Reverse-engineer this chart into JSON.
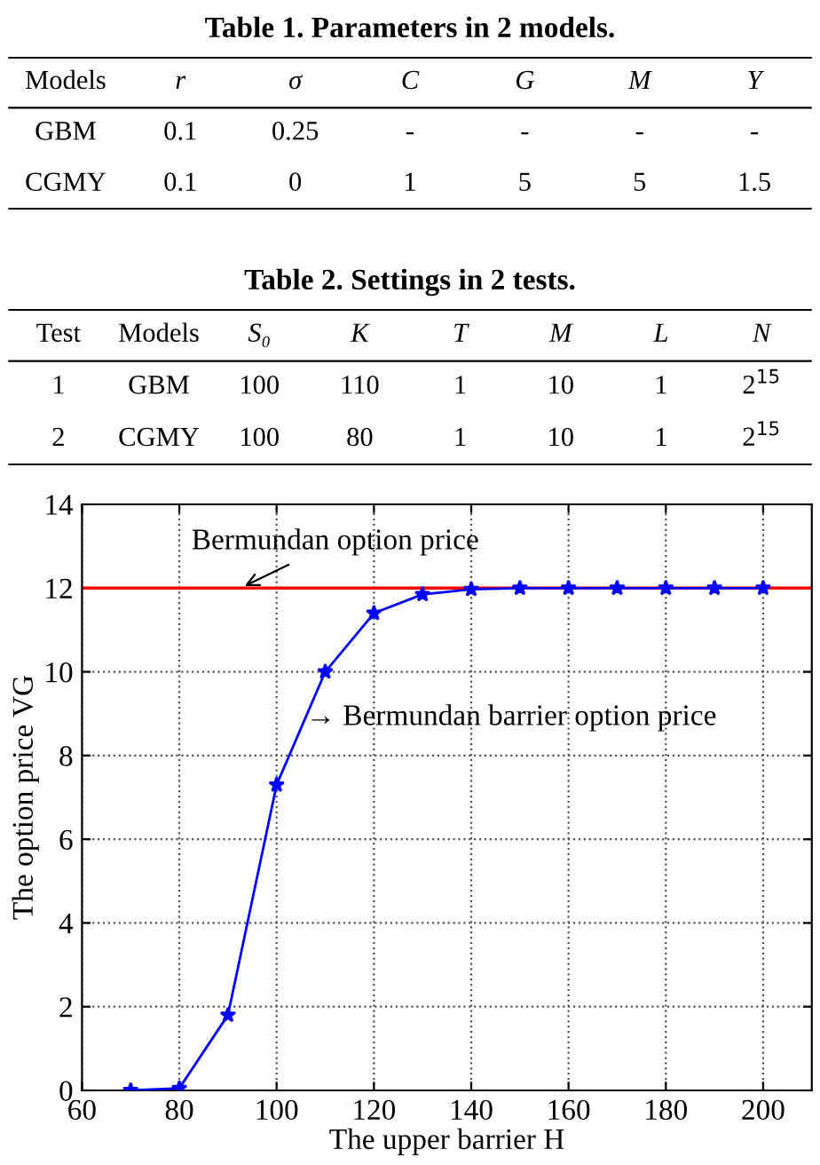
{
  "chart_data": [
    {
      "type": "other",
      "title": "Table 1. Parameters in 2 models.",
      "categories": [
        "Models",
        "r",
        "σ",
        "C",
        "G",
        "M",
        "Y"
      ],
      "annotations": [
        "GBM",
        "0.1",
        "0.25",
        "-",
        "-",
        "-",
        "-",
        "CGMY",
        "0.1",
        "0",
        "1",
        "5",
        "5",
        "1.5"
      ]
    },
    {
      "type": "other",
      "title": "Table 2. Settings in 2 tests.",
      "categories": [
        "Test",
        "Models",
        "S₀",
        "K",
        "T",
        "M",
        "L",
        "N"
      ],
      "annotations": [
        "1",
        "GBM",
        "100",
        "110",
        "1",
        "10",
        "1",
        "2$^{15}$",
        "2",
        "CGMY",
        "100",
        "80",
        "1",
        "10",
        "1",
        "2$^{15}$"
      ]
    },
    {
      "type": "line",
      "xlabel": "The upper barrier H",
      "ylabel": "The option price VG",
      "x": [
        70,
        80,
        90,
        100,
        110,
        120,
        130,
        140,
        150,
        160,
        170,
        180,
        190,
        200
      ],
      "series": [
        {
          "color": "#0000ff",
          "values": [
            0,
            0.05,
            1.8,
            7.3,
            10.0,
            11.4,
            11.85,
            11.97,
            12.0,
            12.0,
            12.0,
            12.0,
            12.0,
            12.0
          ]
        }
      ],
      "xlim": [
        60,
        210
      ],
      "xticks": [
        60,
        80,
        100,
        120,
        140,
        160,
        180,
        200
      ],
      "ylim": [
        0,
        14
      ],
      "yticks": [
        0,
        2,
        4,
        6,
        8,
        10,
        12,
        14
      ],
      "ref_lines": [
        {
          "axis": "y",
          "value": 12,
          "label": "Bermundan option price",
          "color": "#ff0000",
          "line_style": "solid"
        }
      ],
      "annotations": [
        {
          "text": "→ Bermundan barrier option price",
          "x": 106,
          "y": 8.9
        }
      ],
      "grid": true,
      "marker": "star",
      "line_style": "solid"
    }
  ]
}
